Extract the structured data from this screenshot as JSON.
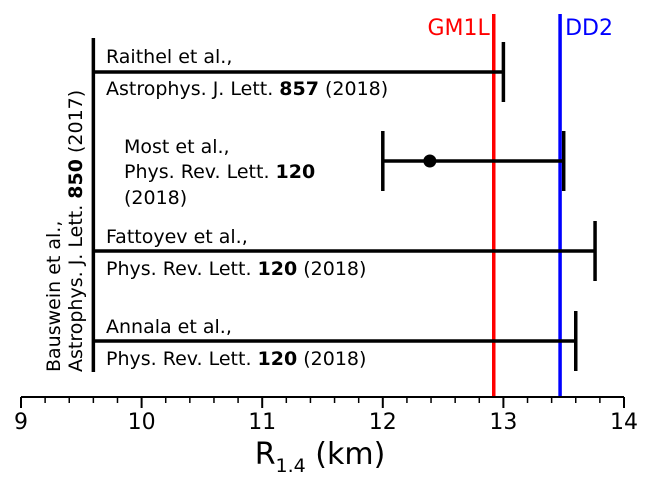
{
  "chart_data": {
    "type": "range",
    "title": "",
    "xlabel": "R",
    "xlabel_sub": "1.4",
    "xlabel_units": " (km)",
    "xlim": [
      9,
      14
    ],
    "xticks": [
      9,
      10,
      11,
      12,
      13,
      14
    ],
    "xtick_labels": [
      "9",
      "10",
      "11",
      "12",
      "13",
      "14"
    ],
    "minor_tick_step": 0.2,
    "reference_lines": [
      {
        "name": "GM1L",
        "value": 12.92,
        "color": "#ff0000"
      },
      {
        "name": "DD2",
        "value": 13.47,
        "color": "#0000ff"
      }
    ],
    "lower_bound": {
      "value": 9.6,
      "label_line1": "Bauswein et al.,",
      "label_line2_prefix": "Astrophys. J. Lett. ",
      "label_line2_bold": "850",
      "label_line2_suffix": " (2017)"
    },
    "constraints": [
      {
        "id": "raithel",
        "min": 9.6,
        "max": 13.0,
        "point": null,
        "line1": "Raithel et al.,",
        "line2_prefix": "Astrophys. J. Lett. ",
        "line2_bold": "857",
        "line2_suffix": " (2018)"
      },
      {
        "id": "most",
        "min": 12.0,
        "max": 13.5,
        "point": 12.39,
        "line1": "Most et al.,",
        "line2_prefix": "Phys. Rev. Lett. ",
        "line2_bold": "120",
        "line2_suffix": "",
        "line3": "(2018)"
      },
      {
        "id": "fattoyev",
        "min": 9.6,
        "max": 13.76,
        "point": null,
        "line1": "Fattoyev et al.,",
        "line2_prefix": "Phys. Rev. Lett. ",
        "line2_bold": "120",
        "line2_suffix": " (2018)"
      },
      {
        "id": "annala",
        "min": 9.6,
        "max": 13.6,
        "point": null,
        "line1": "Annala et al.,",
        "line2_prefix": "Phys. Rev. Lett. ",
        "line2_bold": "120",
        "line2_suffix": " (2018)"
      }
    ]
  }
}
